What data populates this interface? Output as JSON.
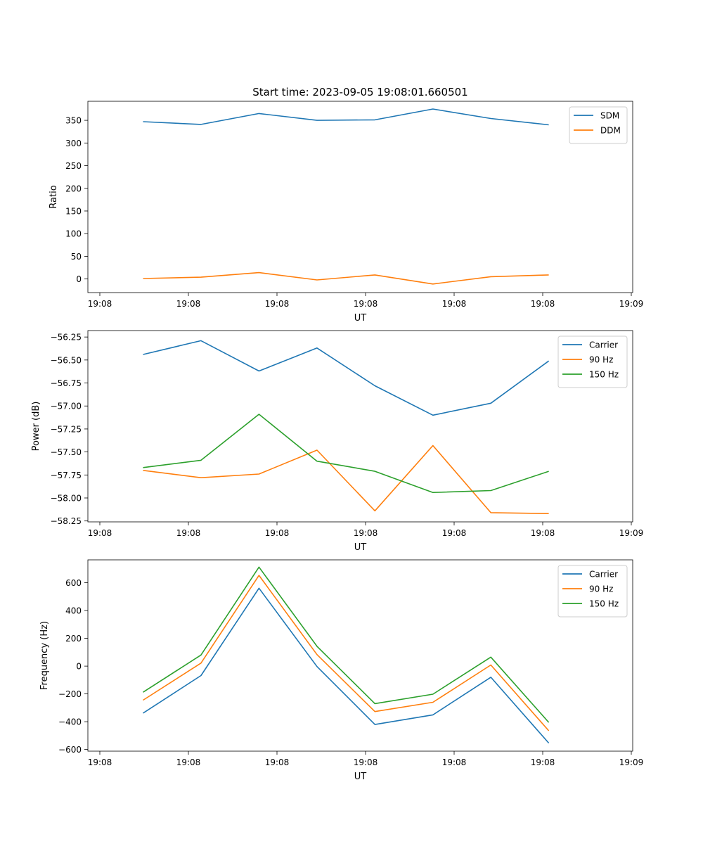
{
  "title": "Start time: 2023-09-05 19:08:01.660501",
  "chart_data": [
    {
      "type": "line",
      "xlabel": "UT",
      "ylabel": "Ratio",
      "xticks": [
        "19:08",
        "19:08",
        "19:08",
        "19:08",
        "19:08",
        "19:08",
        "19:09"
      ],
      "yticks": [
        "0",
        "50",
        "100",
        "150",
        "200",
        "250",
        "300",
        "350"
      ],
      "ylim": [
        -30,
        392
      ],
      "x": [
        0,
        1,
        2,
        3,
        4,
        5,
        6,
        7
      ],
      "legend": "top-right",
      "series": [
        {
          "name": "SDM",
          "color": "#1f77b4",
          "values": [
            347,
            341,
            365,
            350,
            351,
            375,
            354,
            340
          ]
        },
        {
          "name": "DDM",
          "color": "#ff7f0e",
          "values": [
            1,
            4,
            14,
            -2,
            9,
            -11,
            5,
            9
          ]
        }
      ]
    },
    {
      "type": "line",
      "xlabel": "UT",
      "ylabel": "Power (dB)",
      "xticks": [
        "19:08",
        "19:08",
        "19:08",
        "19:08",
        "19:08",
        "19:08",
        "19:09"
      ],
      "yticks": [
        "−58.25",
        "−58.00",
        "−57.75",
        "−57.50",
        "−57.25",
        "−57.00",
        "−56.75",
        "−56.50",
        "−56.25"
      ],
      "ylim": [
        -58.26,
        -56.18
      ],
      "x": [
        0,
        1,
        2,
        3,
        4,
        5,
        6,
        7
      ],
      "legend": "top-right",
      "series": [
        {
          "name": "Carrier",
          "color": "#1f77b4",
          "values": [
            -56.44,
            -56.29,
            -56.62,
            -56.37,
            -56.78,
            -57.1,
            -56.97,
            -56.51
          ]
        },
        {
          "name": "90 Hz",
          "color": "#ff7f0e",
          "values": [
            -57.7,
            -57.78,
            -57.74,
            -57.48,
            -58.14,
            -57.43,
            -58.16,
            -58.17
          ]
        },
        {
          "name": "150 Hz",
          "color": "#2ca02c",
          "values": [
            -57.67,
            -57.59,
            -57.09,
            -57.6,
            -57.71,
            -57.94,
            -57.92,
            -57.71
          ]
        }
      ]
    },
    {
      "type": "line",
      "xlabel": "UT",
      "ylabel": "Frequency (Hz)",
      "xticks": [
        "19:08",
        "19:08",
        "19:08",
        "19:08",
        "19:08",
        "19:08",
        "19:09"
      ],
      "yticks": [
        "−600",
        "−400",
        "−200",
        "0",
        "200",
        "400",
        "600"
      ],
      "ylim": [
        -612,
        765
      ],
      "x": [
        0,
        1,
        2,
        3,
        4,
        5,
        6,
        7
      ],
      "legend": "top-right",
      "series": [
        {
          "name": "Carrier",
          "color": "#1f77b4",
          "values": [
            -338,
            -68,
            561,
            -3,
            -420,
            -351,
            -80,
            -554
          ]
        },
        {
          "name": "90 Hz",
          "color": "#ff7f0e",
          "values": [
            -245,
            22,
            653,
            83,
            -327,
            -260,
            8,
            -465
          ]
        },
        {
          "name": "150 Hz",
          "color": "#2ca02c",
          "values": [
            -188,
            80,
            713,
            143,
            -270,
            -202,
            65,
            -405
          ]
        }
      ]
    }
  ]
}
